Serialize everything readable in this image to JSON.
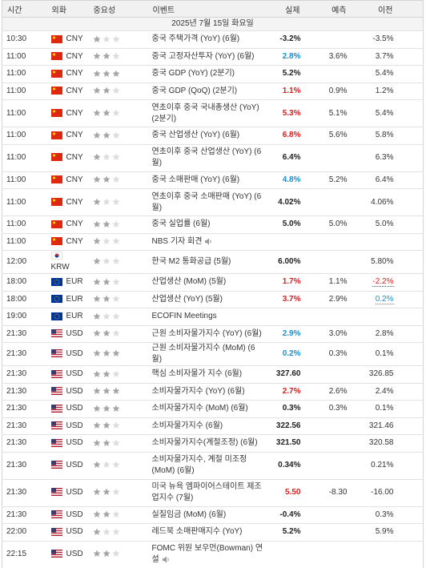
{
  "table": {
    "columns": [
      "시간",
      "외화",
      "중요성",
      "이벤트",
      "실제",
      "예측",
      "이전"
    ],
    "date": "2025년 7월 15일 화요일",
    "rows": [
      {
        "time": "10:30",
        "currency": "CNY",
        "importance": 1,
        "event": "중국 주택가격 (YoY) (6월)",
        "actual": "-3.2%",
        "actual_color": "#222222",
        "previous": "-3.5%"
      },
      {
        "time": "11:00",
        "currency": "CNY",
        "importance": 2,
        "event": "중국 고정자산투자 (YoY) (6월)",
        "actual": "2.8%",
        "actual_color": "#1a8fd1",
        "forecast": "3.6%",
        "previous": "3.7%"
      },
      {
        "time": "11:00",
        "currency": "CNY",
        "importance": 3,
        "event": "중국 GDP (YoY) (2분기)",
        "actual": "5.2%",
        "actual_color": "#222222",
        "previous": "5.4%"
      },
      {
        "time": "11:00",
        "currency": "CNY",
        "importance": 2,
        "event": "중국 GDP (QoQ) (2분기)",
        "actual": "1.1%",
        "actual_color": "#e01b1b",
        "forecast": "0.9%",
        "previous": "1.2%"
      },
      {
        "time": "11:00",
        "currency": "CNY",
        "importance": 2,
        "event": "연초이후 중국 국내총생산 (YoY) (2분기)",
        "actual": "5.3%",
        "actual_color": "#e01b1b",
        "forecast": "5.1%",
        "previous": "5.4%"
      },
      {
        "time": "11:00",
        "currency": "CNY",
        "importance": 2,
        "event": "중국 산업생산 (YoY) (6월)",
        "actual": "6.8%",
        "actual_color": "#e01b1b",
        "forecast": "5.6%",
        "previous": "5.8%"
      },
      {
        "time": "11:00",
        "currency": "CNY",
        "importance": 1,
        "event": "연초이후 중국 산업생산 (YoY) (6월)",
        "actual": "6.4%",
        "actual_color": "#222222",
        "previous": "6.3%"
      },
      {
        "time": "11:00",
        "currency": "CNY",
        "importance": 2,
        "event": "중국 소매판매 (YoY) (6월)",
        "actual": "4.8%",
        "actual_color": "#1a8fd1",
        "forecast": "5.2%",
        "previous": "6.4%"
      },
      {
        "time": "11:00",
        "currency": "CNY",
        "importance": 1,
        "event": "연초이후 중국 소매판매 (YoY) (6월)",
        "actual": "4.02%",
        "actual_color": "#222222",
        "previous": "4.06%"
      },
      {
        "time": "11:00",
        "currency": "CNY",
        "importance": 2,
        "event": "중국 실업률 (6월)",
        "actual": "5.0%",
        "actual_color": "#222222",
        "forecast": "5.0%",
        "previous": "5.0%"
      },
      {
        "time": "11:00",
        "currency": "CNY",
        "importance": 1,
        "event": "NBS 기자 회견",
        "speech": true
      },
      {
        "time": "12:00",
        "currency": "KRW",
        "importance": 1,
        "event": "한국 M2 통화공급 (5월)",
        "actual": "6.00%",
        "actual_color": "#222222",
        "previous": "5.80%"
      },
      {
        "time": "18:00",
        "currency": "EUR",
        "importance": 2,
        "event": "산업생산 (MoM) (5월)",
        "actual": "1.7%",
        "actual_color": "#e01b1b",
        "forecast": "1.1%",
        "previous": "-2.2%",
        "previous_color": "#e01b1b"
      },
      {
        "time": "18:00",
        "currency": "EUR",
        "importance": 2,
        "event": "산업생산 (YoY) (5월)",
        "actual": "3.7%",
        "actual_color": "#e01b1b",
        "forecast": "2.9%",
        "previous": "0.2%",
        "previous_color": "#1a8fd1"
      },
      {
        "time": "19:00",
        "currency": "EUR",
        "importance": 1,
        "event": "ECOFIN Meetings"
      },
      {
        "time": "21:30",
        "currency": "USD",
        "importance": 2,
        "event": "근원 소비자물가지수 (YoY) (6월)",
        "actual": "2.9%",
        "actual_color": "#1a8fd1",
        "forecast": "3.0%",
        "previous": "2.8%"
      },
      {
        "time": "21:30",
        "currency": "USD",
        "importance": 3,
        "event": "근원 소비자물가지수 (MoM) (6월)",
        "actual": "0.2%",
        "actual_color": "#1a8fd1",
        "forecast": "0.3%",
        "previous": "0.1%"
      },
      {
        "time": "21:30",
        "currency": "USD",
        "importance": 2,
        "event": "핵심 소비자물가 지수 (6월)",
        "actual": "327.60",
        "actual_color": "#222222",
        "previous": "326.85"
      },
      {
        "time": "21:30",
        "currency": "USD",
        "importance": 3,
        "event": "소비자물가지수 (YoY) (6월)",
        "actual": "2.7%",
        "actual_color": "#e01b1b",
        "forecast": "2.6%",
        "previous": "2.4%"
      },
      {
        "time": "21:30",
        "currency": "USD",
        "importance": 3,
        "event": "소비자물가지수 (MoM) (6월)",
        "actual": "0.3%",
        "actual_color": "#222222",
        "forecast": "0.3%",
        "previous": "0.1%"
      },
      {
        "time": "21:30",
        "currency": "USD",
        "importance": 2,
        "event": "소비자물가지수 (6월)",
        "actual": "322.56",
        "actual_color": "#222222",
        "previous": "321.46"
      },
      {
        "time": "21:30",
        "currency": "USD",
        "importance": 2,
        "event": "소비자물가지수(계절조정) (6월)",
        "actual": "321.50",
        "actual_color": "#222222",
        "previous": "320.58"
      },
      {
        "time": "21:30",
        "currency": "USD",
        "importance": 1,
        "event": "소비자물가지수, 계절 미조정 (MoM) (6월)",
        "actual": "0.34%",
        "actual_color": "#222222",
        "previous": "0.21%"
      },
      {
        "time": "21:30",
        "currency": "USD",
        "importance": 2,
        "event": "미국 뉴욕 엠파이어스테이트 제조업지수 (7월)",
        "actual": "5.50",
        "actual_color": "#e01b1b",
        "forecast": "-8.30",
        "previous": "-16.00"
      },
      {
        "time": "21:30",
        "currency": "USD",
        "importance": 2,
        "event": "실질임금 (MoM) (6월)",
        "actual": "-0.4%",
        "actual_color": "#222222",
        "previous": "0.3%"
      },
      {
        "time": "22:00",
        "currency": "USD",
        "importance": 1,
        "event": "레드북 소매판매지수 (YoY)",
        "actual": "5.2%",
        "actual_color": "#222222",
        "previous": "5.9%"
      },
      {
        "time": "22:15",
        "currency": "USD",
        "importance": 2,
        "event": "FOMC 위원 보우먼(Bowman) 연설",
        "speech": true
      }
    ]
  }
}
